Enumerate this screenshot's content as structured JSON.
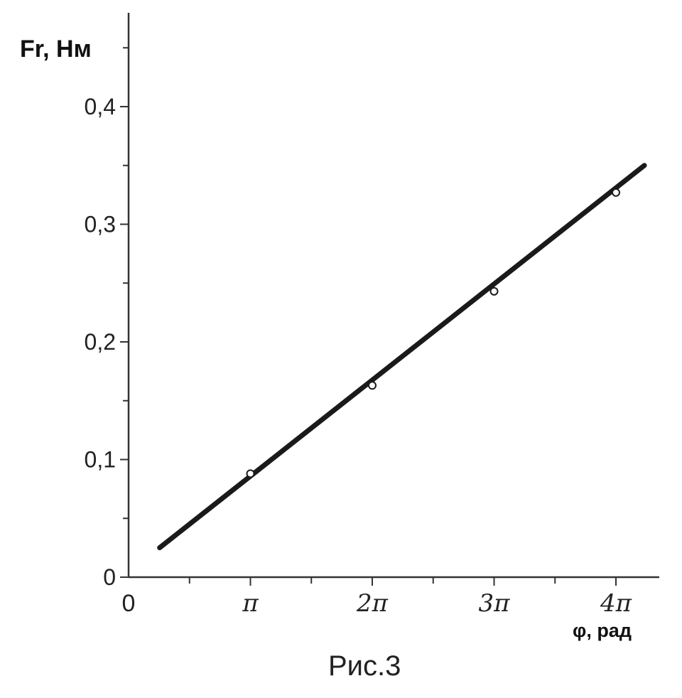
{
  "chart_data": {
    "type": "line",
    "ylabel": "Fr, Нм",
    "xlabel": "φ, рад",
    "caption": "Рис.3",
    "x_ticks": [
      {
        "value": 0,
        "label": "0"
      },
      {
        "value": 3.14159,
        "label": "π"
      },
      {
        "value": 6.28319,
        "label": "2π"
      },
      {
        "value": 9.42478,
        "label": "3π"
      },
      {
        "value": 12.56637,
        "label": "4π"
      }
    ],
    "y_ticks": [
      {
        "value": 0,
        "label": "0"
      },
      {
        "value": 0.1,
        "label": "0,1"
      },
      {
        "value": 0.2,
        "label": "0,2"
      },
      {
        "value": 0.3,
        "label": "0,3"
      },
      {
        "value": 0.4,
        "label": "0,4"
      }
    ],
    "xlim": [
      0,
      13.5
    ],
    "ylim": [
      0,
      0.48
    ],
    "series": [
      {
        "line": {
          "x": [
            0.8,
            13.3
          ],
          "y": [
            0.025,
            0.35
          ]
        },
        "points": {
          "x": [
            3.14159,
            6.28319,
            9.42478,
            12.56637
          ],
          "y": [
            0.088,
            0.163,
            0.243,
            0.327
          ]
        }
      }
    ],
    "grid": false,
    "legend": "none"
  }
}
